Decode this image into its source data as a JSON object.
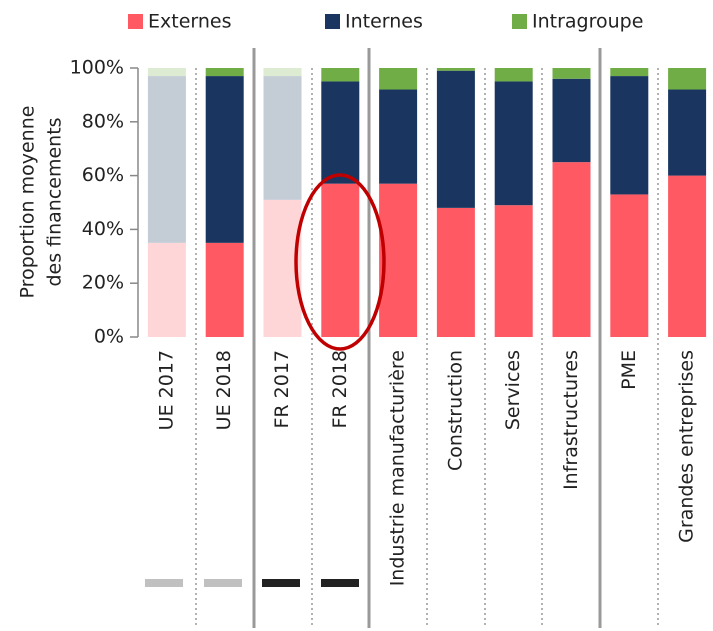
{
  "chart_data": {
    "type": "stacked_bar",
    "y_label": [
      "Proportion moyenne",
      "des financements"
    ],
    "categories": [
      "UE 2017",
      "UE 2018",
      "FR 2017",
      "FR 2018",
      "Industrie manufacturière",
      "Construction",
      "Services",
      "Infrastructures",
      "PME",
      "Grandes entreprises"
    ],
    "series": [
      {
        "name": "Externes",
        "color": "#ff5a64",
        "faded_color": "#ffd6d8",
        "values": [
          35,
          35,
          51,
          57,
          57,
          48,
          49,
          65,
          53,
          60
        ]
      },
      {
        "name": "Internes",
        "color": "#1a3660",
        "faded_color": "#c4ccd6",
        "values": [
          62,
          62,
          46,
          38,
          35,
          51,
          46,
          31,
          44,
          32
        ]
      },
      {
        "name": "Intragroupe",
        "color": "#70ad47",
        "faded_color": "#dcebd2",
        "values": [
          3,
          3,
          3,
          5,
          8,
          1,
          5,
          4,
          3,
          8
        ]
      }
    ],
    "faded": [
      true,
      false,
      true,
      false,
      false,
      false,
      false,
      false,
      false,
      false
    ],
    "ylim": [
      0,
      100
    ],
    "yticks": [
      {
        "value": 0,
        "label": "0%"
      },
      {
        "value": 20,
        "label": "20%"
      },
      {
        "value": 40,
        "label": "40%"
      },
      {
        "value": 60,
        "label": "60%"
      },
      {
        "value": 80,
        "label": "80%"
      },
      {
        "value": 100,
        "label": "100%"
      }
    ]
  }
}
